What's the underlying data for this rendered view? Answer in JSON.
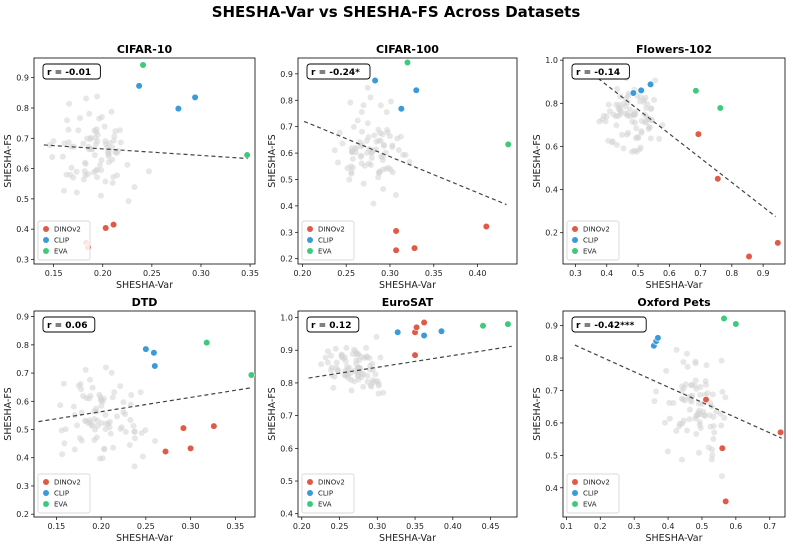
{
  "title": "SHESHA-Var vs SHESHA-FS Across Datasets",
  "colors": {
    "DINOv2": "#e05a47",
    "CLIP": "#3b9ad9",
    "EVA": "#3dcb7b",
    "background_points": "#d4d4d4",
    "trend": "#444444"
  },
  "legend": [
    "DINOv2",
    "CLIP",
    "EVA"
  ],
  "chart_data": [
    {
      "type": "scatter",
      "title": "CIFAR-10",
      "xlabel": "SHESHA-Var",
      "ylabel": "SHESHA-FS",
      "r_label": "r = -0.01",
      "xlim": [
        0.13,
        0.355
      ],
      "ylim": [
        0.285,
        0.965
      ],
      "xticks": [
        0.15,
        0.2,
        0.25,
        0.3,
        0.35
      ],
      "xtick_labels": [
        "0.15",
        "0.20",
        "0.25",
        "0.30",
        "0.35"
      ],
      "yticks": [
        0.3,
        0.4,
        0.5,
        0.6,
        0.7,
        0.8,
        0.9
      ],
      "ytick_labels": [
        "0.3",
        "0.4",
        "0.5",
        "0.6",
        "0.7",
        "0.8",
        "0.9"
      ],
      "trend": [
        [
          0.14,
          0.678
        ],
        [
          0.348,
          0.633
        ]
      ],
      "series": [
        {
          "name": "DINOv2",
          "points": [
            [
              0.183,
              0.355
            ],
            [
              0.185,
              0.34
            ],
            [
              0.203,
              0.404
            ],
            [
              0.211,
              0.415
            ]
          ]
        },
        {
          "name": "CLIP",
          "points": [
            [
              0.237,
              0.873
            ],
            [
              0.277,
              0.798
            ],
            [
              0.294,
              0.835
            ]
          ]
        },
        {
          "name": "EVA",
          "points": [
            [
              0.241,
              0.942
            ],
            [
              0.347,
              0.645
            ]
          ]
        }
      ]
    },
    {
      "type": "scatter",
      "title": "CIFAR-100",
      "xlabel": "SHESHA-Var",
      "ylabel": "SHESHA-FS",
      "r_label": "r = -0.24*",
      "xlim": [
        0.195,
        0.445
      ],
      "ylim": [
        0.18,
        0.96
      ],
      "xticks": [
        0.2,
        0.25,
        0.3,
        0.35,
        0.4
      ],
      "xtick_labels": [
        "0.20",
        "0.25",
        "0.30",
        "0.35",
        "0.40"
      ],
      "yticks": [
        0.2,
        0.3,
        0.4,
        0.5,
        0.6,
        0.7,
        0.8,
        0.9
      ],
      "ytick_labels": [
        "0.2",
        "0.3",
        "0.4",
        "0.5",
        "0.6",
        "0.7",
        "0.8",
        "0.9"
      ],
      "trend": [
        [
          0.202,
          0.72
        ],
        [
          0.433,
          0.405
        ]
      ],
      "series": [
        {
          "name": "DINOv2",
          "points": [
            [
              0.307,
              0.305
            ],
            [
              0.307,
              0.232
            ],
            [
              0.328,
              0.24
            ],
            [
              0.41,
              0.322
            ]
          ]
        },
        {
          "name": "CLIP",
          "points": [
            [
              0.283,
              0.875
            ],
            [
              0.313,
              0.768
            ],
            [
              0.33,
              0.838
            ]
          ]
        },
        {
          "name": "EVA",
          "points": [
            [
              0.32,
              0.943
            ],
            [
              0.435,
              0.633
            ]
          ]
        }
      ]
    },
    {
      "type": "scatter",
      "title": "Flowers-102",
      "xlabel": "SHESHA-Var",
      "ylabel": "SHESHA-FS",
      "r_label": "r = -0.14",
      "xlim": [
        0.26,
        0.97
      ],
      "ylim": [
        0.055,
        1.01
      ],
      "xticks": [
        0.3,
        0.4,
        0.5,
        0.6,
        0.7,
        0.8,
        0.9
      ],
      "xtick_labels": [
        "0.3",
        "0.4",
        "0.5",
        "0.6",
        "0.7",
        "0.8",
        "0.9"
      ],
      "yticks": [
        0.2,
        0.4,
        0.6,
        0.8,
        1.0
      ],
      "ytick_labels": [
        "0.2",
        "0.4",
        "0.6",
        "0.8",
        "1.0"
      ],
      "trend": [
        [
          0.355,
          0.935
        ],
        [
          0.94,
          0.275
        ]
      ],
      "series": [
        {
          "name": "DINOv2",
          "points": [
            [
              0.693,
              0.657
            ],
            [
              0.755,
              0.45
            ],
            [
              0.855,
              0.09
            ],
            [
              0.947,
              0.153
            ]
          ]
        },
        {
          "name": "CLIP",
          "points": [
            [
              0.485,
              0.848
            ],
            [
              0.51,
              0.86
            ],
            [
              0.54,
              0.888
            ]
          ]
        },
        {
          "name": "EVA",
          "points": [
            [
              0.685,
              0.858
            ],
            [
              0.763,
              0.778
            ]
          ]
        }
      ]
    },
    {
      "type": "scatter",
      "title": "DTD",
      "xlabel": "SHESHA-Var",
      "ylabel": "SHESHA-FS",
      "r_label": "r = 0.06",
      "xlim": [
        0.125,
        0.372
      ],
      "ylim": [
        0.19,
        0.92
      ],
      "xticks": [
        0.15,
        0.2,
        0.25,
        0.3,
        0.35
      ],
      "xtick_labels": [
        "0.15",
        "0.20",
        "0.25",
        "0.30",
        "0.35"
      ],
      "yticks": [
        0.2,
        0.3,
        0.4,
        0.5,
        0.6,
        0.7,
        0.8,
        0.9
      ],
      "ytick_labels": [
        "0.2",
        "0.3",
        "0.4",
        "0.5",
        "0.6",
        "0.7",
        "0.8",
        "0.9"
      ],
      "trend": [
        [
          0.13,
          0.528
        ],
        [
          0.368,
          0.648
        ]
      ],
      "series": [
        {
          "name": "DINOv2",
          "points": [
            [
              0.272,
              0.422
            ],
            [
              0.292,
              0.505
            ],
            [
              0.3,
              0.433
            ],
            [
              0.326,
              0.512
            ]
          ]
        },
        {
          "name": "CLIP",
          "points": [
            [
              0.25,
              0.785
            ],
            [
              0.259,
              0.772
            ],
            [
              0.26,
              0.725
            ]
          ]
        },
        {
          "name": "EVA",
          "points": [
            [
              0.318,
              0.808
            ],
            [
              0.368,
              0.693
            ]
          ]
        }
      ]
    },
    {
      "type": "scatter",
      "title": "EuroSAT",
      "xlabel": "SHESHA-Var",
      "ylabel": "SHESHA-FS",
      "r_label": "r = 0.12",
      "xlim": [
        0.195,
        0.485
      ],
      "ylim": [
        0.39,
        1.02
      ],
      "xticks": [
        0.2,
        0.25,
        0.3,
        0.35,
        0.4,
        0.45
      ],
      "xtick_labels": [
        "0.20",
        "0.25",
        "0.30",
        "0.35",
        "0.40",
        "0.45"
      ],
      "yticks": [
        0.4,
        0.5,
        0.6,
        0.7,
        0.8,
        0.9,
        1.0
      ],
      "ytick_labels": [
        "0.4",
        "0.5",
        "0.6",
        "0.7",
        "0.8",
        "0.9",
        "1.0"
      ],
      "trend": [
        [
          0.209,
          0.815
        ],
        [
          0.478,
          0.912
        ]
      ],
      "series": [
        {
          "name": "DINOv2",
          "points": [
            [
              0.35,
              0.955
            ],
            [
              0.352,
              0.97
            ],
            [
              0.362,
              0.985
            ],
            [
              0.35,
              0.885
            ]
          ]
        },
        {
          "name": "CLIP",
          "points": [
            [
              0.327,
              0.955
            ],
            [
              0.362,
              0.945
            ],
            [
              0.385,
              0.958
            ]
          ]
        },
        {
          "name": "EVA",
          "points": [
            [
              0.44,
              0.975
            ],
            [
              0.473,
              0.98
            ]
          ]
        }
      ]
    },
    {
      "type": "scatter",
      "title": "Oxford Pets",
      "xlabel": "SHESHA-Var",
      "ylabel": "SHESHA-FS",
      "r_label": "r = -0.42***",
      "xlim": [
        0.09,
        0.745
      ],
      "ylim": [
        0.31,
        0.945
      ],
      "xticks": [
        0.1,
        0.2,
        0.3,
        0.4,
        0.5,
        0.6,
        0.7
      ],
      "xtick_labels": [
        "0.1",
        "0.2",
        "0.3",
        "0.4",
        "0.5",
        "0.6",
        "0.7"
      ],
      "yticks": [
        0.4,
        0.5,
        0.6,
        0.7,
        0.8,
        0.9
      ],
      "ytick_labels": [
        "0.4",
        "0.5",
        "0.6",
        "0.7",
        "0.8",
        "0.9"
      ],
      "trend": [
        [
          0.125,
          0.84
        ],
        [
          0.735,
          0.553
        ]
      ],
      "series": [
        {
          "name": "DINOv2",
          "points": [
            [
              0.512,
              0.672
            ],
            [
              0.56,
              0.522
            ],
            [
              0.57,
              0.358
            ],
            [
              0.732,
              0.571
            ]
          ]
        },
        {
          "name": "CLIP",
          "points": [
            [
              0.358,
              0.838
            ],
            [
              0.365,
              0.852
            ],
            [
              0.37,
              0.862
            ]
          ]
        },
        {
          "name": "EVA",
          "points": [
            [
              0.565,
              0.922
            ],
            [
              0.6,
              0.905
            ]
          ]
        }
      ]
    }
  ]
}
